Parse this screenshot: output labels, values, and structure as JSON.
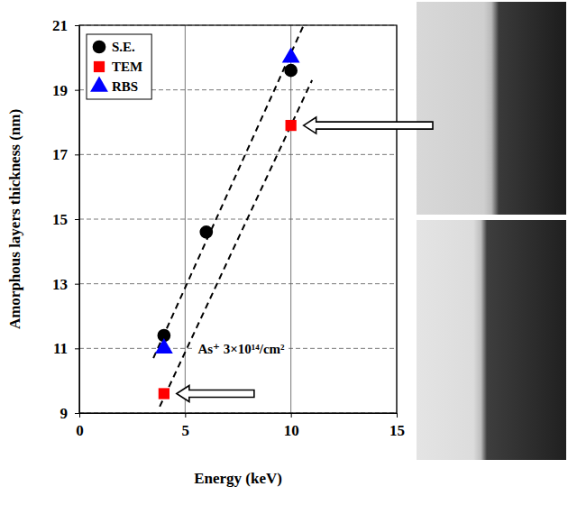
{
  "chart_data": {
    "type": "scatter",
    "x_label": "Energy (keV)",
    "y_label": "Amorphous layers thickness (nm)",
    "annotation": "As⁺ 3×10¹⁴/cm²",
    "xlim": [
      0,
      15
    ],
    "xticks": [
      0,
      5,
      10,
      15
    ],
    "ylim": [
      9,
      21
    ],
    "yticks": [
      9,
      11,
      13,
      15,
      17,
      19,
      21
    ],
    "grid": true,
    "legend": "upper left",
    "series": [
      {
        "name": "S.E.",
        "color": "#000000",
        "marker": "circle",
        "x": [
          4,
          6,
          10
        ],
        "values": [
          11.4,
          14.6,
          19.6
        ]
      },
      {
        "name": "TEM",
        "color": "#ff0000",
        "marker": "square",
        "x": [
          4,
          10
        ],
        "values": [
          9.6,
          17.9
        ]
      },
      {
        "name": "RBS",
        "color": "#0000ff",
        "marker": "triangle",
        "x": [
          4,
          10
        ],
        "values": [
          11.0,
          20.0
        ]
      },
      {
        "type": "line",
        "line_style": "dashed",
        "color": "#000000",
        "x": [
          3.5,
          10.6
        ],
        "values": [
          10.7,
          21.0
        ]
      },
      {
        "type": "line",
        "line_style": "dashed",
        "color": "#000000",
        "x": [
          3.8,
          11.0
        ],
        "values": [
          9.2,
          19.3
        ]
      }
    ]
  }
}
